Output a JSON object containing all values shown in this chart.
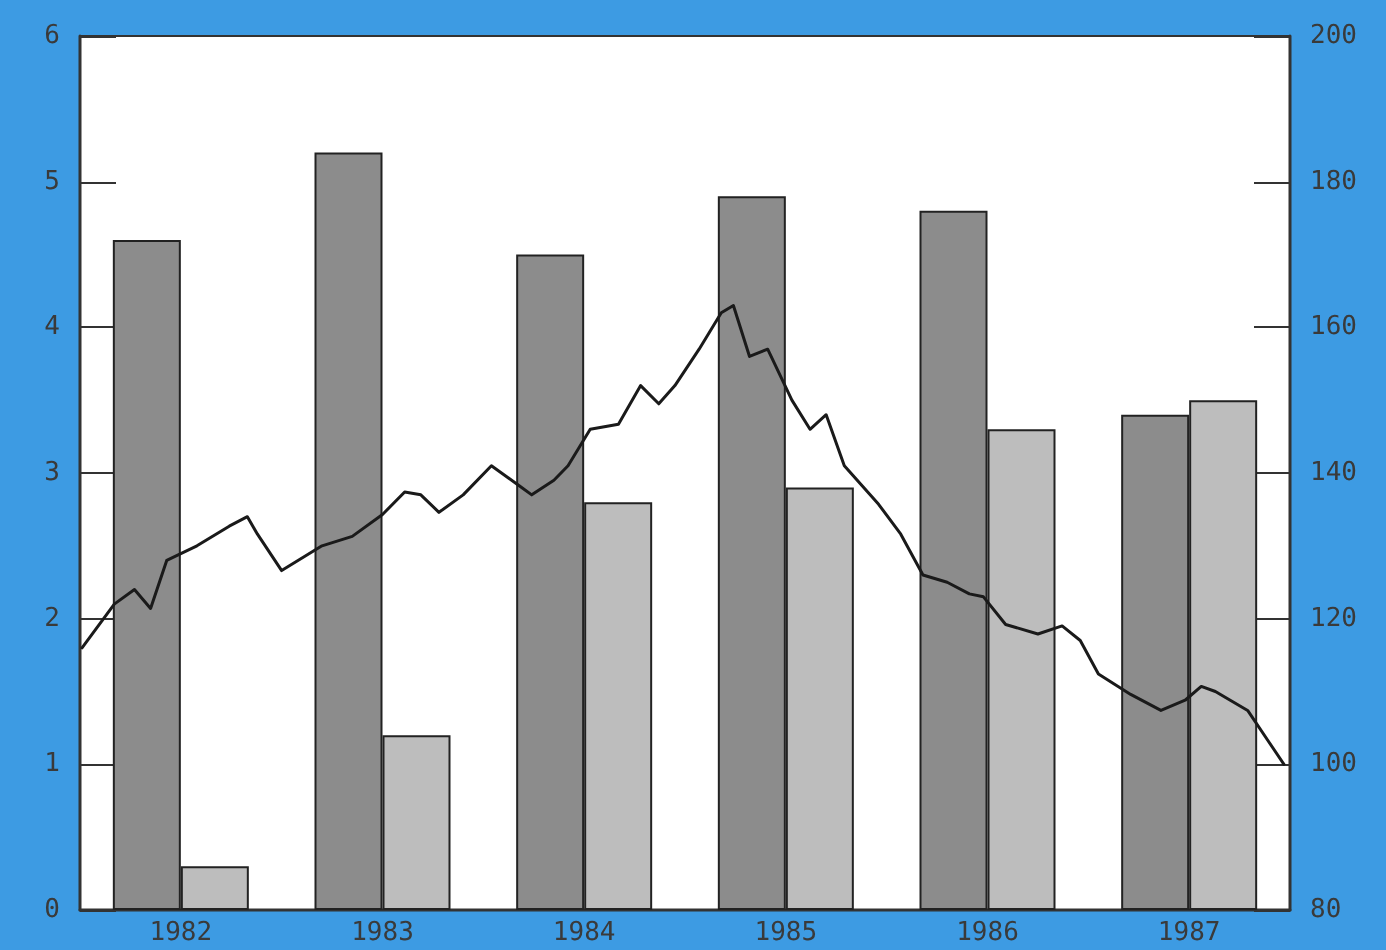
{
  "chart_data": {
    "type": "bar",
    "x": [
      1982,
      1983,
      1984,
      1985,
      1986,
      1987
    ],
    "xlim": [
      1981.5,
      1987.5
    ],
    "xticks": [
      1982,
      1983,
      1984,
      1985,
      1986,
      1987
    ],
    "series": [
      {
        "color": "#8c8c8c",
        "values": [
          4.6,
          5.2,
          4.5,
          4.9,
          4.8,
          3.4
        ]
      },
      {
        "color": "#bdbdbd",
        "values": [
          0.3,
          1.2,
          2.8,
          2.9,
          3.3,
          3.5
        ]
      },
      {
        "type": "line",
        "axis": "y2",
        "color": "#1a1a1a",
        "x": [
          1981.51,
          1981.67,
          1981.77,
          1981.85,
          1981.93,
          1982.08,
          1982.24,
          1982.33,
          1982.38,
          1982.5,
          1982.7,
          1982.85,
          1983.0,
          1983.11,
          1983.19,
          1983.28,
          1983.4,
          1983.54,
          1983.69,
          1983.74,
          1983.85,
          1983.92,
          1984.03,
          1984.17,
          1984.28,
          1984.37,
          1984.45,
          1984.57,
          1984.68,
          1984.74,
          1984.82,
          1984.91,
          1985.03,
          1985.12,
          1985.2,
          1985.29,
          1985.46,
          1985.57,
          1985.68,
          1985.8,
          1985.91,
          1985.98,
          1986.09,
          1986.25,
          1986.37,
          1986.46,
          1986.55,
          1986.71,
          1986.86,
          1986.98,
          1987.06,
          1987.13,
          1987.29,
          1987.47
        ],
        "values": [
          116,
          122,
          124,
          121.4,
          128,
          130,
          132.7,
          134,
          131.6,
          126.6,
          130,
          131.3,
          134.3,
          137.4,
          137,
          134.6,
          137,
          141,
          138,
          137,
          139,
          141,
          146,
          146.7,
          152,
          149.5,
          152,
          157,
          162,
          163,
          156,
          157,
          150,
          146,
          148,
          141,
          135.7,
          131.6,
          126,
          125,
          123.4,
          123,
          119.2,
          117.9,
          119,
          117,
          112.4,
          109.6,
          107.4,
          108.8,
          110.7,
          110,
          107.4,
          100
        ]
      }
    ],
    "ylim": [
      0,
      6
    ],
    "yticks": [
      0,
      1,
      2,
      3,
      4,
      5,
      6
    ],
    "y2lim": [
      80,
      200
    ],
    "y2ticks": [
      80,
      100,
      120,
      140,
      160,
      180,
      200
    ],
    "grid": false,
    "marker": "none",
    "line_style": "solid"
  }
}
